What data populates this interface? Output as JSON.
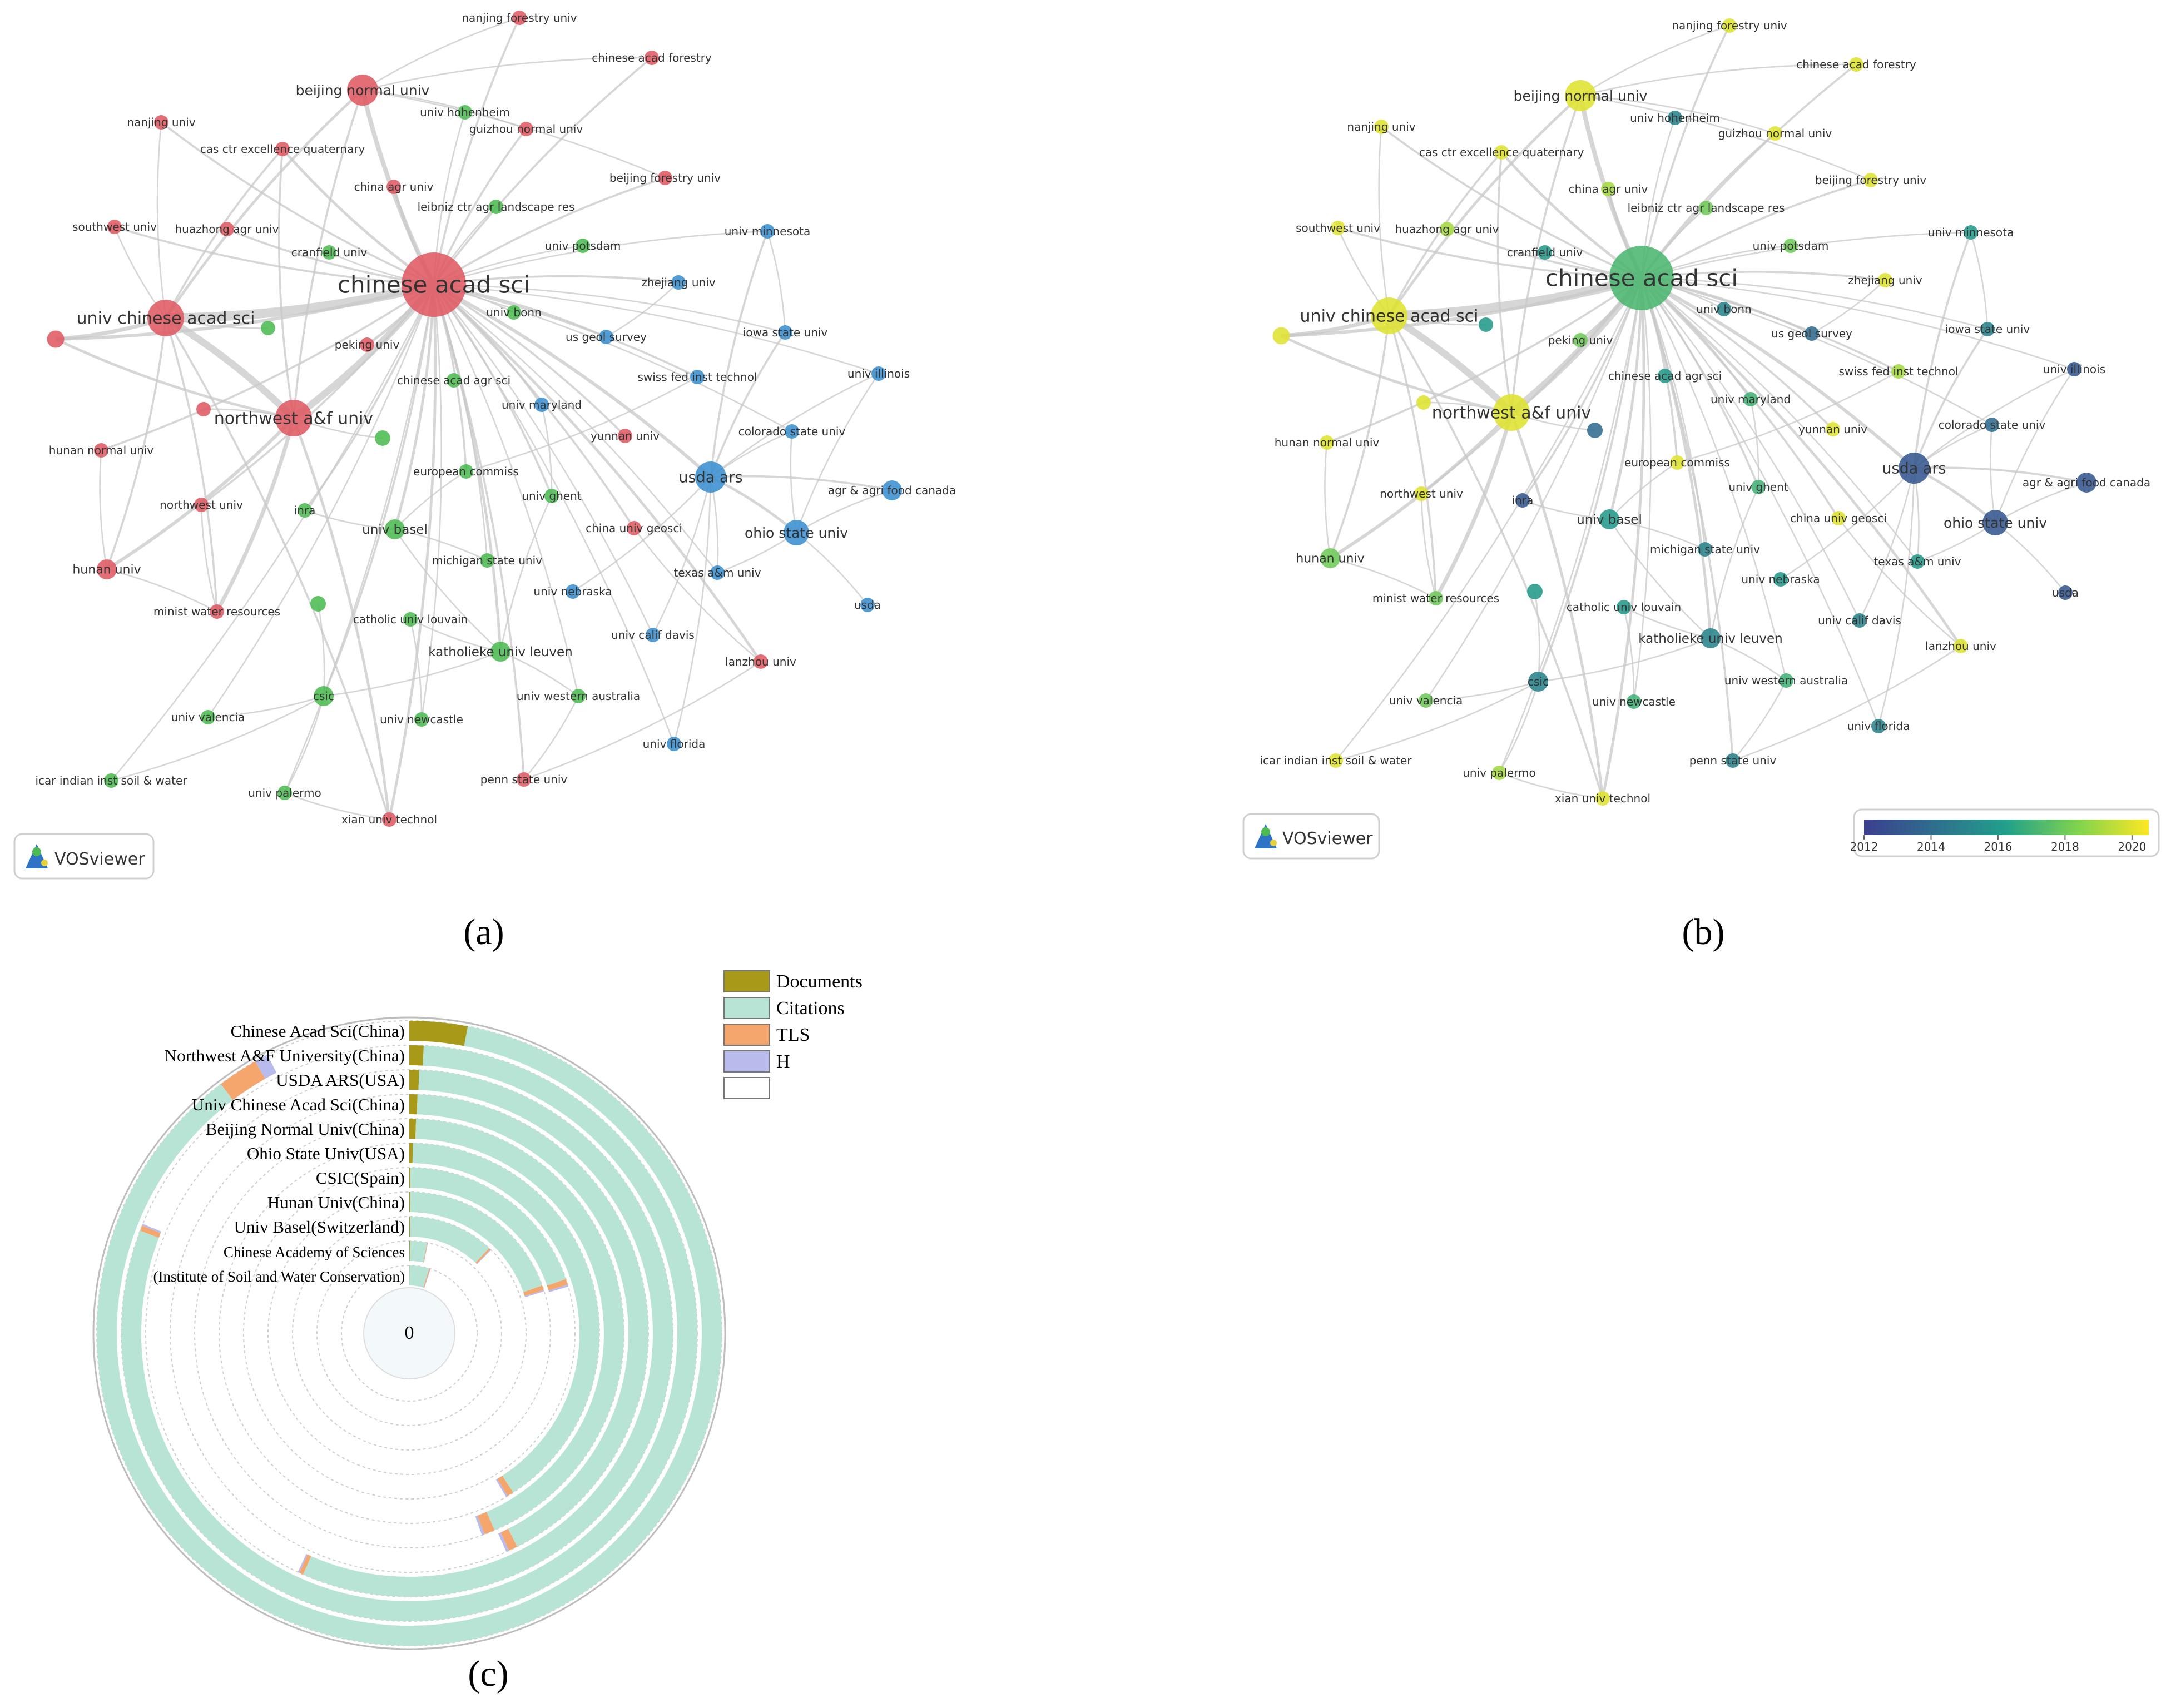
{
  "panels": {
    "a": {
      "caption": "(a)"
    },
    "b": {
      "caption": "(b)"
    },
    "c": {
      "caption": "(c)"
    }
  },
  "vosviewer": {
    "brand": "VOSviewer"
  },
  "network": {
    "node_colors": {
      "red": "#e05a63",
      "green": "#4cbb52",
      "blue": "#3a8fd0"
    },
    "overlay_range": [
      2012,
      2020.5
    ],
    "overlay_ticks": [
      "2012",
      "2014",
      "2016",
      "2018",
      "2020"
    ],
    "nodes": [
      {
        "id": "cas",
        "label": "chinese acad sci",
        "cluster": "red",
        "weight": 10,
        "year": 2017.2
      },
      {
        "id": "ucas",
        "label": "univ chinese acad sci",
        "cluster": "red",
        "weight": 5,
        "year": 2020
      },
      {
        "id": "nwaf",
        "label": "northwest a&f univ",
        "cluster": "red",
        "weight": 5,
        "year": 2020
      },
      {
        "id": "bnu",
        "label": "beijing normal univ",
        "cluster": "red",
        "weight": 4,
        "year": 2020
      },
      {
        "id": "usda_ars",
        "label": "usda ars",
        "cluster": "blue",
        "weight": 4,
        "year": 2013
      },
      {
        "id": "ohio",
        "label": "ohio state univ",
        "cluster": "blue",
        "weight": 3,
        "year": 2013
      },
      {
        "id": "nanjing_for",
        "label": "nanjing forestry univ",
        "cluster": "red",
        "weight": 1,
        "year": 2020
      },
      {
        "id": "cafor",
        "label": "chinese acad forestry",
        "cluster": "red",
        "weight": 1,
        "year": 2020
      },
      {
        "id": "hohenheim",
        "label": "univ hohenheim",
        "cluster": "green",
        "weight": 1,
        "year": 2015
      },
      {
        "id": "guizhou",
        "label": "guizhou normal univ",
        "cluster": "red",
        "weight": 1,
        "year": 2020
      },
      {
        "id": "nanjing",
        "label": "nanjing univ",
        "cluster": "red",
        "weight": 1,
        "year": 2020
      },
      {
        "id": "casquat",
        "label": "cas ctr excellence quaternary",
        "cluster": "red",
        "weight": 1,
        "year": 2020
      },
      {
        "id": "bfu",
        "label": "beijing forestry univ",
        "cluster": "red",
        "weight": 1,
        "year": 2020
      },
      {
        "id": "cau",
        "label": "china agr univ",
        "cluster": "red",
        "weight": 1,
        "year": 2019
      },
      {
        "id": "leibniz",
        "label": "leibniz ctr agr landscape res",
        "cluster": "green",
        "weight": 1,
        "year": 2018
      },
      {
        "id": "southwest",
        "label": "southwest univ",
        "cluster": "red",
        "weight": 1,
        "year": 2020
      },
      {
        "id": "huazhong",
        "label": "huazhong agr univ",
        "cluster": "red",
        "weight": 1,
        "year": 2019
      },
      {
        "id": "minnesota",
        "label": "univ minnesota",
        "cluster": "blue",
        "weight": 1,
        "year": 2016
      },
      {
        "id": "cranfield",
        "label": "cranfield univ",
        "cluster": "green",
        "weight": 1,
        "year": 2016
      },
      {
        "id": "potsdam",
        "label": "univ potsdam",
        "cluster": "green",
        "weight": 1,
        "year": 2018
      },
      {
        "id": "zhejiang",
        "label": "zhejiang univ",
        "cluster": "blue",
        "weight": 1,
        "year": 2020
      },
      {
        "id": "bonn",
        "label": "univ bonn",
        "cluster": "green",
        "weight": 1,
        "year": 2015
      },
      {
        "id": "usgs",
        "label": "us geol survey",
        "cluster": "blue",
        "weight": 1,
        "year": 2014
      },
      {
        "id": "iowa",
        "label": "iowa state univ",
        "cluster": "blue",
        "weight": 1,
        "year": 2015
      },
      {
        "id": "peking",
        "label": "peking univ",
        "cluster": "red",
        "weight": 1,
        "year": 2018
      },
      {
        "id": "illinois",
        "label": "univ illinois",
        "cluster": "blue",
        "weight": 1,
        "year": 2013
      },
      {
        "id": "caas",
        "label": "chinese acad agr sci",
        "cluster": "green",
        "weight": 1,
        "year": 2016
      },
      {
        "id": "swiss",
        "label": "swiss fed inst technol",
        "cluster": "blue",
        "weight": 1,
        "year": 2019
      },
      {
        "id": "maryland",
        "label": "univ maryland",
        "cluster": "blue",
        "weight": 1,
        "year": 2017
      },
      {
        "id": "colorado",
        "label": "colorado state univ",
        "cluster": "blue",
        "weight": 1,
        "year": 2014
      },
      {
        "id": "hunan_normal",
        "label": "hunan normal univ",
        "cluster": "red",
        "weight": 1,
        "year": 2020
      },
      {
        "id": "yunnan",
        "label": "yunnan univ",
        "cluster": "red",
        "weight": 1,
        "year": 2020
      },
      {
        "id": "eurocomm",
        "label": "european commiss",
        "cluster": "green",
        "weight": 1,
        "year": 2020
      },
      {
        "id": "agcanada",
        "label": "agr & agri food canada",
        "cluster": "blue",
        "weight": 2,
        "year": 2013
      },
      {
        "id": "nwu",
        "label": "northwest univ",
        "cluster": "red",
        "weight": 1,
        "year": 2020
      },
      {
        "id": "inra",
        "label": "inra",
        "cluster": "green",
        "weight": 1,
        "year": 2013
      },
      {
        "id": "ghent",
        "label": "univ ghent",
        "cluster": "green",
        "weight": 1,
        "year": 2017
      },
      {
        "id": "basel",
        "label": "univ basel",
        "cluster": "green",
        "weight": 2,
        "year": 2016
      },
      {
        "id": "cugeo",
        "label": "china univ geosci",
        "cluster": "red",
        "weight": 1,
        "year": 2020
      },
      {
        "id": "michigan",
        "label": "michigan state univ",
        "cluster": "green",
        "weight": 1,
        "year": 2015
      },
      {
        "id": "tamu",
        "label": "texas a&m univ",
        "cluster": "blue",
        "weight": 1,
        "year": 2016
      },
      {
        "id": "hunan",
        "label": "hunan univ",
        "cluster": "red",
        "weight": 2,
        "year": 2018
      },
      {
        "id": "nebraska",
        "label": "univ nebraska",
        "cluster": "blue",
        "weight": 1,
        "year": 2016
      },
      {
        "id": "mwr",
        "label": "minist water resources",
        "cluster": "red",
        "weight": 1,
        "year": 2018
      },
      {
        "id": "usda",
        "label": "usda",
        "cluster": "blue",
        "weight": 1,
        "year": 2013
      },
      {
        "id": "louvain",
        "label": "catholic univ louvain",
        "cluster": "green",
        "weight": 1,
        "year": 2016
      },
      {
        "id": "ucdavis",
        "label": "univ calif davis",
        "cluster": "blue",
        "weight": 1,
        "year": 2015
      },
      {
        "id": "leuven",
        "label": "katholieke univ leuven",
        "cluster": "green",
        "weight": 2,
        "year": 2015
      },
      {
        "id": "lanzhou",
        "label": "lanzhou univ",
        "cluster": "red",
        "weight": 1,
        "year": 2020
      },
      {
        "id": "csic",
        "label": "csic",
        "cluster": "green",
        "weight": 2,
        "year": 2015
      },
      {
        "id": "uwa",
        "label": "univ western australia",
        "cluster": "green",
        "weight": 1,
        "year": 2017
      },
      {
        "id": "valencia",
        "label": "univ valencia",
        "cluster": "green",
        "weight": 1,
        "year": 2018
      },
      {
        "id": "newcastle",
        "label": "univ newcastle",
        "cluster": "green",
        "weight": 1,
        "year": 2017
      },
      {
        "id": "florida",
        "label": "univ florida",
        "cluster": "blue",
        "weight": 1,
        "year": 2015
      },
      {
        "id": "icar",
        "label": "icar indian inst soil & water",
        "cluster": "green",
        "weight": 1,
        "year": 2020
      },
      {
        "id": "palermo",
        "label": "univ palermo",
        "cluster": "green",
        "weight": 1,
        "year": 2019
      },
      {
        "id": "pennstate",
        "label": "penn state univ",
        "cluster": "red",
        "weight": 1,
        "year": 2015
      },
      {
        "id": "xian",
        "label": "xian univ technol",
        "cluster": "red",
        "weight": 1,
        "year": 2020
      },
      {
        "id": "u1",
        "label": "",
        "cluster": "red",
        "weight": 1.5,
        "year": 2020
      },
      {
        "id": "u2",
        "label": "",
        "cluster": "green",
        "weight": 1,
        "year": 2016
      },
      {
        "id": "u3",
        "label": "",
        "cluster": "red",
        "weight": 1,
        "year": 2020
      },
      {
        "id": "u4",
        "label": "",
        "cluster": "green",
        "weight": 1.2,
        "year": 2014
      },
      {
        "id": "u5",
        "label": "",
        "cluster": "green",
        "weight": 1.2,
        "year": 2016
      }
    ]
  },
  "polar_chart": {
    "center_label": "0",
    "legend": [
      {
        "name": "Documents",
        "color": "#a89a18"
      },
      {
        "name": "Citations",
        "color": "#b7e4d5"
      },
      {
        "name": "TLS",
        "color": "#f4a66c"
      },
      {
        "name": "H",
        "color": "#b9bbec"
      },
      {
        "name": "",
        "color": "#ffffff"
      }
    ]
  },
  "chart_data": {
    "type": "bar",
    "subtype": "radial-stacked",
    "categories": [
      "Chinese Acad Sci(China)",
      "Northwest A&F University(China)",
      "USDA ARS(USA)",
      "Univ Chinese Acad Sci(China)",
      "Beijing Normal Univ(China)",
      "Ohio State Univ(USA)",
      "CSIC(Spain)",
      "Hunan Univ(China)",
      "Univ Basel(Switzerland)",
      "Chinese Academy of Sciences",
      "(Institute of Soil and Water Conservation)"
    ],
    "series": [
      {
        "name": "Documents",
        "values": [
          3.0,
          0.8,
          0.6,
          0.55,
          0.5,
          0.3,
          0.1,
          0.1,
          0.1,
          0.1,
          0.05
        ]
      },
      {
        "name": "Citations",
        "values": [
          86.7,
          80.0,
          56.0,
          42.0,
          43.0,
          40.5,
          19.6,
          19.4,
          11.9,
          3.0,
          4.7
        ]
      },
      {
        "name": "TLS",
        "values": [
          2.1,
          0.3,
          0.25,
          0.6,
          0.8,
          0.55,
          0.55,
          0.55,
          0.25,
          0.1,
          0.25
        ]
      },
      {
        "name": "H",
        "values": [
          0.7,
          0.1,
          0.1,
          0.2,
          0.2,
          0.15,
          0.2,
          0.15,
          0.1,
          0.05,
          0.1
        ]
      }
    ],
    "value_units": "percent of full circle"
  }
}
